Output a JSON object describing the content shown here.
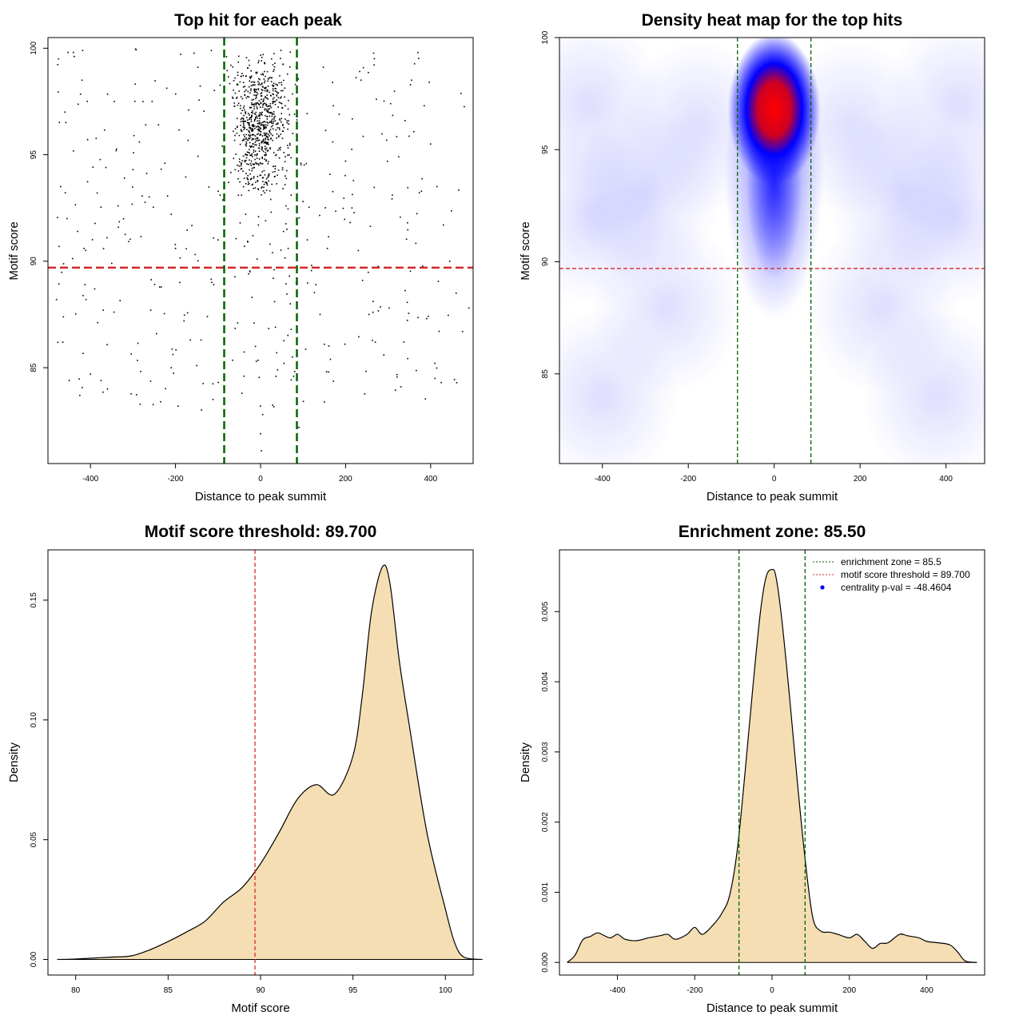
{
  "colors": {
    "threshold": "#d62728",
    "zone": "#006400",
    "fill": "#f5deb3",
    "heat_low": "#ffffff",
    "heat_mid": "#0000ff",
    "heat_high": "#ff0000",
    "points": "#000000",
    "legend_point": "#0000ff"
  },
  "chart_data": [
    {
      "type": "scatter",
      "title": "Top hit for each peak",
      "xlabel": "Distance to peak summit",
      "ylabel": "Motif score",
      "xlim": [
        -500,
        500
      ],
      "ylim": [
        80.5,
        100.5
      ],
      "xticks": [
        -400,
        -200,
        0,
        200,
        400
      ],
      "xtick_labels": [
        "-400",
        "-200",
        "0",
        "200",
        "400"
      ],
      "yticks": [
        85,
        90,
        95,
        100
      ],
      "ytick_labels": [
        "85",
        "90",
        "95",
        "100"
      ],
      "hline": 89.7,
      "vlines": [
        -85.5,
        85.5
      ],
      "points": [
        [
          -475,
          99.5
        ],
        [
          -460,
          97
        ],
        [
          -440,
          99.8
        ],
        [
          -420,
          98.5
        ],
        [
          -470,
          93.5
        ],
        [
          -455,
          92
        ],
        [
          -430,
          91.4
        ],
        [
          -415,
          90.6
        ],
        [
          -480,
          88.2
        ],
        [
          -465,
          86.2
        ],
        [
          -450,
          84.4
        ],
        [
          -425,
          83.7
        ],
        [
          -400,
          84.7
        ],
        [
          -375,
          84.4
        ],
        [
          -360,
          84
        ],
        [
          -390,
          88.7
        ],
        [
          -370,
          87.7
        ],
        [
          -350,
          89.9
        ],
        [
          -335,
          92.6
        ],
        [
          -320,
          93.9
        ],
        [
          -300,
          94.3
        ],
        [
          -285,
          95.6
        ],
        [
          -270,
          96.4
        ],
        [
          -255,
          97.5
        ],
        [
          -240,
          96.4
        ],
        [
          -225,
          94.6
        ],
        [
          -210,
          92.2
        ],
        [
          -200,
          90.6
        ],
        [
          -190,
          89
        ],
        [
          -180,
          87.2
        ],
        [
          -165,
          86.3
        ],
        [
          -150,
          85.1
        ],
        [
          -140,
          86.3
        ],
        [
          -125,
          87.4
        ],
        [
          -110,
          88.9
        ],
        [
          -100,
          91
        ],
        [
          -95,
          93.1
        ],
        [
          -90,
          95.4
        ],
        [
          -85,
          97.6
        ],
        [
          -80,
          99.6
        ],
        [
          -70,
          99.2
        ],
        [
          -60,
          98.6
        ],
        [
          -55,
          96.7
        ],
        [
          -50,
          95.9
        ],
        [
          -45,
          94.6
        ],
        [
          -40,
          93.5
        ],
        [
          -35,
          92.2
        ],
        [
          -30,
          90.9
        ],
        [
          -25,
          89.5
        ],
        [
          -20,
          88.3
        ],
        [
          -15,
          87.1
        ],
        [
          -12,
          86
        ],
        [
          -10,
          85.3
        ],
        [
          -5,
          91.7
        ],
        [
          0,
          83.2
        ],
        [
          0,
          81.9
        ],
        [
          2,
          81.1
        ],
        [
          5,
          82.8
        ],
        [
          10,
          97.1
        ],
        [
          12,
          96.4
        ],
        [
          15,
          96.8
        ],
        [
          18,
          95.2
        ],
        [
          20,
          94.1
        ],
        [
          22,
          93.3
        ],
        [
          25,
          92.3
        ],
        [
          28,
          90.4
        ],
        [
          30,
          89.2
        ],
        [
          33,
          88.1
        ],
        [
          35,
          86.9
        ],
        [
          38,
          85.7
        ],
        [
          40,
          84.9
        ],
        [
          42,
          97.9
        ],
        [
          45,
          98.7
        ],
        [
          48,
          99.9
        ],
        [
          50,
          97.4
        ],
        [
          52,
          96.1
        ],
        [
          55,
          95.1
        ],
        [
          58,
          94
        ],
        [
          60,
          92.6
        ],
        [
          62,
          91.5
        ],
        [
          65,
          90.6
        ],
        [
          68,
          89.3
        ],
        [
          70,
          88
        ],
        [
          72,
          86.8
        ],
        [
          75,
          85.5
        ],
        [
          78,
          84.6
        ],
        [
          80,
          96.9
        ],
        [
          82,
          98.3
        ],
        [
          84,
          99.1
        ],
        [
          90,
          82.2
        ],
        [
          95,
          94.6
        ],
        [
          100,
          92.8
        ],
        [
          110,
          91
        ],
        [
          120,
          89.8
        ],
        [
          130,
          88.9
        ],
        [
          140,
          87.5
        ],
        [
          150,
          86.1
        ],
        [
          160,
          84.8
        ],
        [
          170,
          95.6
        ],
        [
          185,
          96.9
        ],
        [
          200,
          94.7
        ],
        [
          215,
          92.5
        ],
        [
          230,
          90.5
        ],
        [
          240,
          89.1
        ],
        [
          255,
          87.5
        ],
        [
          270,
          86.2
        ],
        [
          290,
          85.6
        ],
        [
          310,
          93.1
        ],
        [
          325,
          94.9
        ],
        [
          340,
          96.6
        ],
        [
          355,
          98.5
        ],
        [
          370,
          99.8
        ],
        [
          385,
          97.3
        ],
        [
          400,
          95.5
        ],
        [
          415,
          93.5
        ],
        [
          430,
          91.7
        ],
        [
          445,
          90
        ],
        [
          460,
          88.5
        ],
        [
          475,
          86.7
        ],
        [
          490,
          87.8
        ],
        [
          330,
          84.1
        ],
        [
          410,
          84.5
        ],
        [
          425,
          84.3
        ],
        [
          -30,
          96.5
        ],
        [
          -25,
          97.2
        ],
        [
          -20,
          96.1
        ],
        [
          -18,
          95.5
        ],
        [
          -15,
          97.8
        ],
        [
          -12,
          96.9
        ],
        [
          -10,
          96.3
        ],
        [
          -8,
          95.8
        ],
        [
          -5,
          97.4
        ],
        [
          -2,
          96.7
        ],
        [
          0,
          96.1
        ],
        [
          2,
          97.6
        ],
        [
          5,
          98.2
        ],
        [
          8,
          96.4
        ],
        [
          10,
          95.6
        ],
        [
          -28,
          95.1
        ],
        [
          -22,
          94.5
        ],
        [
          -16,
          93.9
        ],
        [
          -6,
          93.4
        ],
        [
          4,
          94.2
        ],
        [
          14,
          93.7
        ],
        [
          24,
          92.9
        ],
        [
          -34,
          98.7
        ],
        [
          -26,
          99.2
        ],
        [
          -14,
          98.4
        ],
        [
          -4,
          99.4
        ],
        [
          6,
          99.7
        ],
        [
          16,
          98.9
        ],
        [
          26,
          99.5
        ],
        [
          36,
          98.1
        ],
        [
          -40,
          97.2
        ],
        [
          -44,
          96.1
        ],
        [
          34,
          96.8
        ],
        [
          44,
          95.3
        ],
        [
          -52,
          93.1
        ],
        [
          -48,
          91.8
        ],
        [
          -38,
          90.7
        ],
        [
          -28,
          89.4
        ],
        [
          -18,
          91.2
        ],
        [
          -8,
          90.1
        ],
        [
          12,
          91.9
        ],
        [
          22,
          90.8
        ],
        [
          32,
          89.6
        ],
        [
          -60,
          95.9
        ],
        [
          -66,
          97.7
        ],
        [
          58,
          97.3
        ],
        [
          64,
          96.2
        ],
        [
          -75,
          93.7
        ],
        [
          72,
          93.1
        ]
      ]
    },
    {
      "type": "heatmap",
      "title": "Density heat map for the top hits",
      "xlabel": "Distance to peak summit",
      "ylabel": "Motif score",
      "xlim": [
        -500,
        490
      ],
      "ylim": [
        81,
        100
      ],
      "xticks": [
        -400,
        -200,
        0,
        200,
        400
      ],
      "xtick_labels": [
        "-400",
        "-200",
        "0",
        "200",
        "400"
      ],
      "yticks": [
        85,
        90,
        95,
        100
      ],
      "ytick_labels": [
        "85",
        "90",
        "95",
        "100"
      ],
      "hline": 89.7,
      "vlines": [
        -85.5,
        85.5
      ],
      "density_peak": [
        0,
        96.8
      ],
      "colorscale": [
        "white",
        "blue",
        "red"
      ]
    },
    {
      "type": "area",
      "title": "Motif score threshold: 89.700",
      "xlabel": "Motif score",
      "ylabel": "Density",
      "xlim": [
        78.5,
        101.5
      ],
      "ylim": [
        -0.0065,
        0.171
      ],
      "xticks": [
        80,
        85,
        90,
        95,
        100
      ],
      "xtick_labels": [
        "80",
        "85",
        "90",
        "95",
        "100"
      ],
      "yticks": [
        0,
        0.05,
        0.1,
        0.15
      ],
      "ytick_labels": [
        "0.00",
        "0.05",
        "0.10",
        "0.15"
      ],
      "vline": 89.7,
      "x": [
        79,
        80,
        81,
        82,
        83,
        84,
        85,
        86,
        87,
        88,
        89,
        90,
        91,
        92,
        93,
        94,
        95,
        95.5,
        96,
        96.6,
        97,
        97.5,
        98,
        99,
        100,
        100.5,
        101,
        102
      ],
      "y": [
        0,
        0.0002,
        0.0006,
        0.001,
        0.0015,
        0.004,
        0.0075,
        0.0115,
        0.016,
        0.024,
        0.03,
        0.04,
        0.053,
        0.067,
        0.073,
        0.069,
        0.085,
        0.11,
        0.145,
        0.164,
        0.157,
        0.125,
        0.1,
        0.053,
        0.021,
        0.007,
        0.001,
        0
      ]
    },
    {
      "type": "area",
      "title": "Enrichment zone: 85.50",
      "xlabel": "Distance to peak summit",
      "ylabel": "Density",
      "xlim": [
        -550,
        550
      ],
      "ylim": [
        -0.00018,
        0.00588
      ],
      "xticks": [
        -400,
        -200,
        0,
        200,
        400
      ],
      "xtick_labels": [
        "-400",
        "-200",
        "0",
        "200",
        "400"
      ],
      "yticks": [
        0,
        0.001,
        0.002,
        0.003,
        0.004,
        0.005
      ],
      "ytick_labels": [
        "0.000",
        "0.001",
        "0.002",
        "0.003",
        "0.004",
        "0.005"
      ],
      "vlines": [
        -85.5,
        85.5
      ],
      "x": [
        -530,
        -510,
        -490,
        -470,
        -450,
        -420,
        -400,
        -380,
        -350,
        -320,
        -290,
        -270,
        -250,
        -220,
        -200,
        -180,
        -150,
        -130,
        -110,
        -90,
        -70,
        -50,
        -30,
        -15,
        0,
        10,
        25,
        45,
        65,
        85,
        105,
        125,
        150,
        170,
        200,
        220,
        240,
        260,
        280,
        300,
        330,
        350,
        380,
        400,
        430,
        460,
        480,
        500,
        530
      ],
      "y": [
        0,
        0.0001,
        0.00032,
        0.00037,
        0.00042,
        0.00035,
        0.0004,
        0.00033,
        0.00031,
        0.00035,
        0.00038,
        0.0004,
        0.00033,
        0.0004,
        0.0005,
        0.0004,
        0.00055,
        0.0007,
        0.00095,
        0.0016,
        0.0027,
        0.0039,
        0.005,
        0.0055,
        0.0056,
        0.0055,
        0.0049,
        0.0038,
        0.0026,
        0.0015,
        0.00065,
        0.00045,
        0.00043,
        0.0004,
        0.00035,
        0.0004,
        0.0003,
        0.0002,
        0.00027,
        0.00028,
        0.0004,
        0.00038,
        0.00035,
        0.0003,
        0.00028,
        0.00025,
        0.00015,
        2e-05,
        0
      ],
      "legend": [
        {
          "label": "enrichment zone = 85.5",
          "style": "dotted-green"
        },
        {
          "label": "motif score threshold = 89.700",
          "style": "dotted-red"
        },
        {
          "label": "centrality p-val = -48.4604",
          "style": "point-blue"
        }
      ]
    }
  ]
}
